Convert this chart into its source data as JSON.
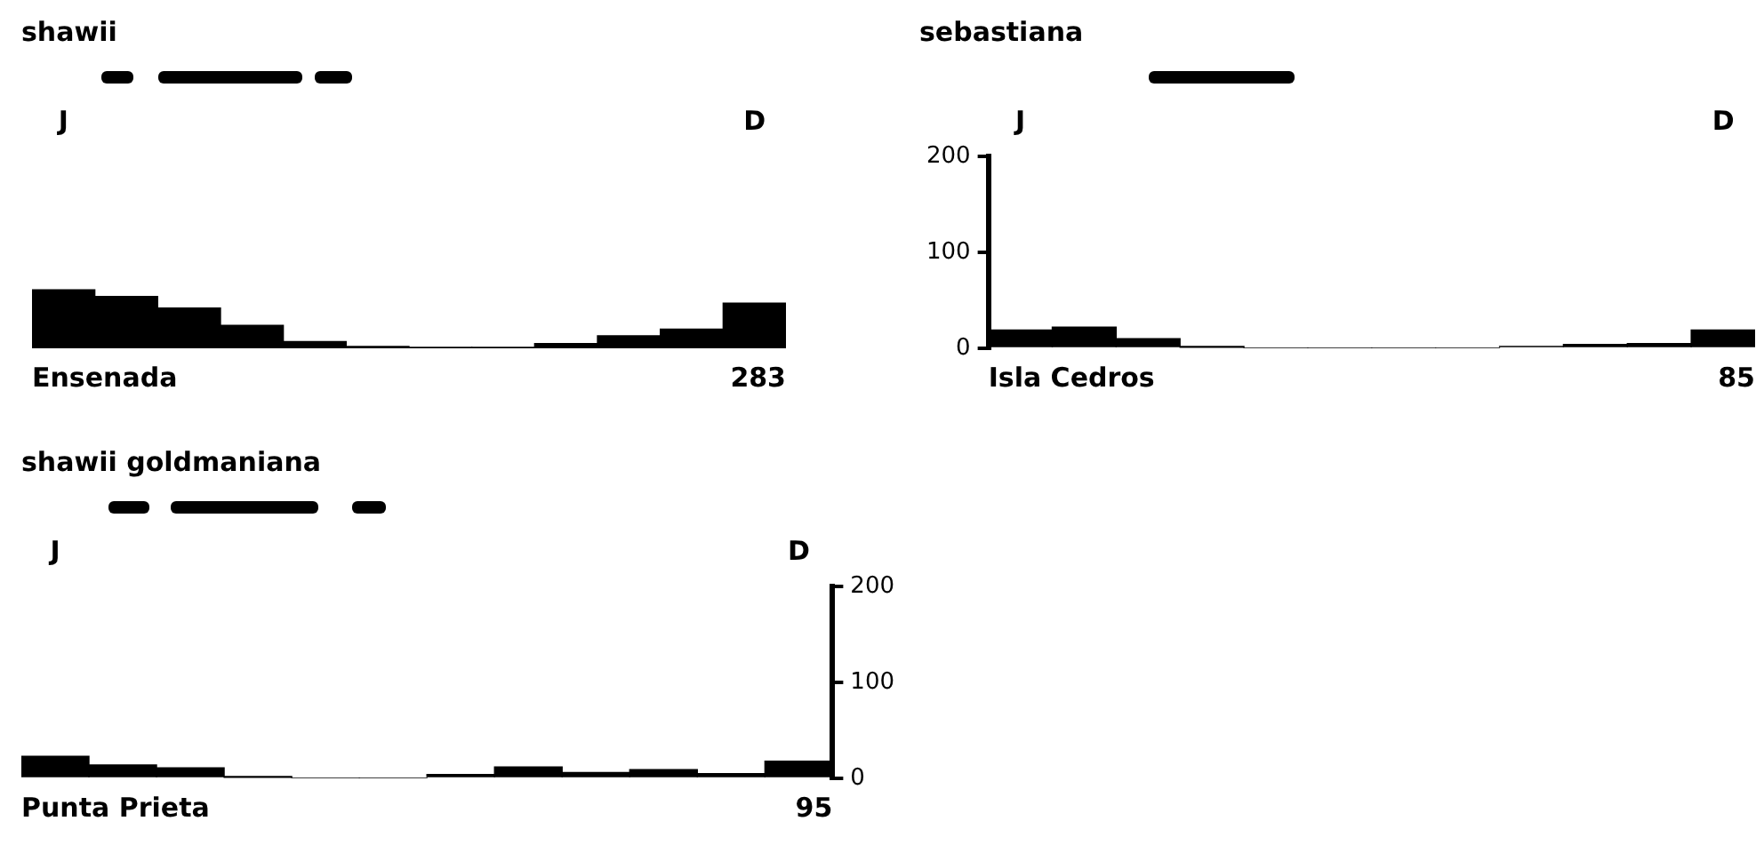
{
  "chart_data": [
    {
      "type": "bar",
      "title": "shawii",
      "categories": [
        "J",
        null,
        null,
        null,
        null,
        null,
        null,
        null,
        null,
        null,
        null,
        "D"
      ],
      "values": [
        61,
        54,
        42,
        24,
        7,
        2,
        1,
        1,
        5,
        13,
        20,
        47
      ],
      "color": "#000000",
      "ylim": [
        0,
        200
      ],
      "yticks": [
        0,
        100,
        200
      ],
      "tick_labels": "x",
      "annotations": [
        "Ensenada",
        "283"
      ]
    },
    {
      "type": "bar",
      "title": "sebastiana",
      "categories": [
        "J",
        null,
        null,
        null,
        null,
        null,
        null,
        null,
        null,
        null,
        null,
        "D"
      ],
      "values": [
        19,
        22,
        10,
        1,
        0,
        0,
        0,
        0,
        2,
        4,
        5,
        19
      ],
      "color": "#000000",
      "ylim": [
        0,
        200
      ],
      "yticks": [
        0,
        100,
        200
      ],
      "annotations": [
        "Isla Cedros",
        "85"
      ]
    },
    {
      "type": "bar",
      "title": "shawii goldmaniana",
      "categories": [
        "J",
        null,
        null,
        null,
        null,
        null,
        null,
        null,
        null,
        null,
        null,
        "D"
      ],
      "values": [
        23,
        14,
        11,
        1,
        0,
        0,
        4,
        12,
        6,
        9,
        5,
        18
      ],
      "color": "#000000",
      "ylim": [
        0,
        200
      ],
      "yticks": [
        0,
        100,
        200
      ],
      "annotations": [
        "Punta Prieta",
        "95"
      ]
    }
  ]
}
